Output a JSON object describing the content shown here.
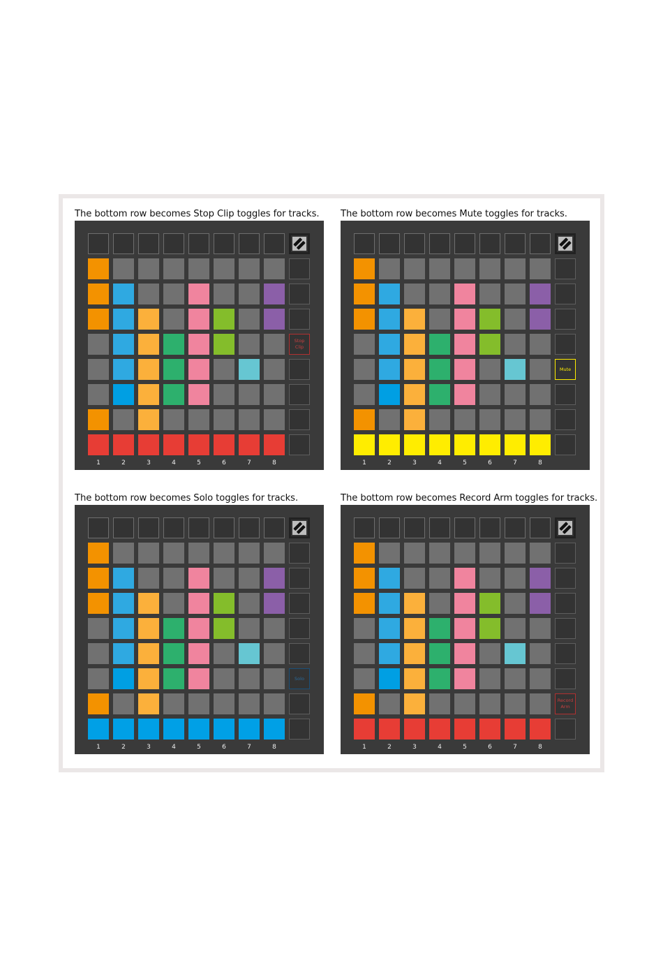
{
  "palette": {
    "O": "#f39200",
    "G": "#717171",
    "B": "#2fa9e1",
    "P": "#f0849e",
    "V": "#8b5fa8",
    "Y": "#fbb03b",
    "L": "#84bd2b",
    "E": "#2db06d",
    "C": "#66c6d2",
    "D": "#009fe3"
  },
  "pad_rows": [
    "OGGGGGGG",
    "OBGGPGGV",
    "OBYGPLGV",
    "GBYEPLGG",
    "GBYEPGCG",
    "GDYEPGGG",
    "OGYGGGGG"
  ],
  "track_numbers": [
    "1",
    "2",
    "3",
    "4",
    "5",
    "6",
    "7",
    "8"
  ],
  "logo_icon": "novation-logo-icon",
  "panels": [
    {
      "title": "The bottom row becomes Stop Clip toggles for tracks.",
      "button_label": "Stop Clip",
      "button_row": 4,
      "color": "#e73d35"
    },
    {
      "title": "The bottom row becomes Mute toggles for tracks.",
      "button_label": "Mute",
      "button_row": 5,
      "color": "#ffed00"
    },
    {
      "title": "The bottom row becomes Solo toggles for tracks.",
      "button_label": "Solo",
      "button_row": 6,
      "color": "#00a0e6"
    },
    {
      "title": "The bottom row becomes Record Arm toggles for tracks.",
      "button_label": "Record Arm",
      "button_row": 7,
      "color": "#e73d35"
    }
  ]
}
